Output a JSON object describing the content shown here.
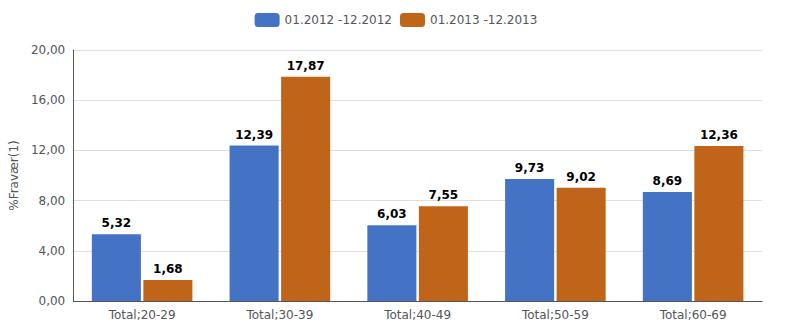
{
  "chart_data": {
    "type": "bar",
    "categories": [
      "Total;20-29",
      "Total;30-39",
      "Total;40-49",
      "Total;50-59",
      "Total;60-69"
    ],
    "series": [
      {
        "name": "01.2012 -12.2012",
        "color": "#4472C4",
        "values": [
          5.32,
          12.39,
          6.03,
          9.73,
          8.69
        ],
        "value_labels": [
          "5,32",
          "12,39",
          "6,03",
          "9,73",
          "8,69"
        ]
      },
      {
        "name": "01.2013 -12.2013",
        "color": "#C0641A",
        "values": [
          1.68,
          17.87,
          7.55,
          9.02,
          12.36
        ],
        "value_labels": [
          "1,68",
          "17,87",
          "7,55",
          "9,02",
          "12,36"
        ]
      }
    ],
    "ylabel": "%Fravær(1)",
    "ylim": [
      0,
      20
    ],
    "yticks": [
      {
        "value": 0,
        "label": "0,00"
      },
      {
        "value": 4,
        "label": "4,00"
      },
      {
        "value": 8,
        "label": "8,00"
      },
      {
        "value": 12,
        "label": "12,00"
      },
      {
        "value": 16,
        "label": "16,00"
      },
      {
        "value": 20,
        "label": "20,00"
      }
    ],
    "grid": true,
    "legend": "top",
    "data_labels": true
  }
}
